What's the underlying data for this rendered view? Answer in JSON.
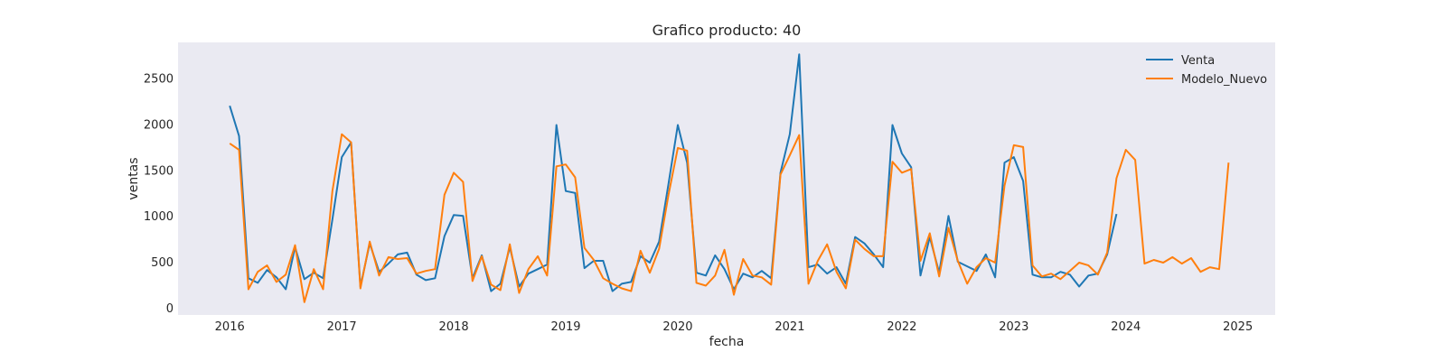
{
  "chart_data": {
    "type": "line",
    "title": "Grafico producto: 40",
    "xlabel": "fecha",
    "ylabel": "ventas",
    "x_ticks": [
      "2016",
      "2017",
      "2018",
      "2019",
      "2020",
      "2021",
      "2022",
      "2023",
      "2024",
      "2025"
    ],
    "y_ticks": [
      0,
      500,
      1000,
      1500,
      2000,
      2500
    ],
    "ylim": [
      -80,
      2890
    ],
    "xlim": [
      "2015-07-15",
      "2025-05-01"
    ],
    "grid": false,
    "legend_position": "top-right",
    "background_color": "#eaeaf2",
    "series": [
      {
        "name": "Venta",
        "color": "#1f77b4",
        "start": "2016-01",
        "values": [
          2200,
          1870,
          320,
          270,
          410,
          330,
          200,
          660,
          310,
          380,
          320,
          960,
          1640,
          1800,
          230,
          700,
          390,
          480,
          580,
          600,
          360,
          300,
          320,
          780,
          1010,
          1000,
          320,
          570,
          180,
          260,
          660,
          230,
          370,
          420,
          470,
          1990,
          1270,
          1250,
          430,
          510,
          510,
          180,
          260,
          280,
          560,
          490,
          720,
          1350,
          1990,
          1580,
          380,
          350,
          570,
          420,
          200,
          370,
          330,
          400,
          320,
          1470,
          1890,
          2760,
          440,
          470,
          370,
          440,
          260,
          770,
          700,
          580,
          440,
          1990,
          1680,
          1530,
          350,
          770,
          380,
          1000,
          500,
          450,
          400,
          580,
          330,
          1580,
          1640,
          1380,
          360,
          330,
          330,
          390,
          360,
          230,
          350,
          370,
          580,
          1020
        ]
      },
      {
        "name": "Modelo_Nuevo",
        "color": "#ff7f0e",
        "start": "2016-01",
        "values": [
          1790,
          1720,
          200,
          390,
          460,
          280,
          360,
          680,
          60,
          420,
          200,
          1270,
          1890,
          1800,
          210,
          720,
          350,
          550,
          530,
          540,
          370,
          400,
          420,
          1230,
          1470,
          1370,
          290,
          560,
          250,
          190,
          690,
          160,
          420,
          560,
          350,
          1540,
          1560,
          1420,
          650,
          520,
          320,
          260,
          210,
          180,
          620,
          380,
          640,
          1230,
          1740,
          1710,
          270,
          240,
          350,
          630,
          140,
          530,
          350,
          330,
          250,
          1450,
          1660,
          1880,
          260,
          510,
          690,
          390,
          210,
          740,
          640,
          560,
          560,
          1590,
          1470,
          1510,
          510,
          810,
          340,
          870,
          510,
          260,
          440,
          540,
          490,
          1330,
          1770,
          1750,
          460,
          340,
          370,
          310,
          400,
          490,
          460,
          360,
          600,
          1410,
          1720,
          1610,
          480,
          520,
          490,
          550,
          480,
          540,
          390,
          440,
          420,
          1580
        ]
      }
    ]
  }
}
